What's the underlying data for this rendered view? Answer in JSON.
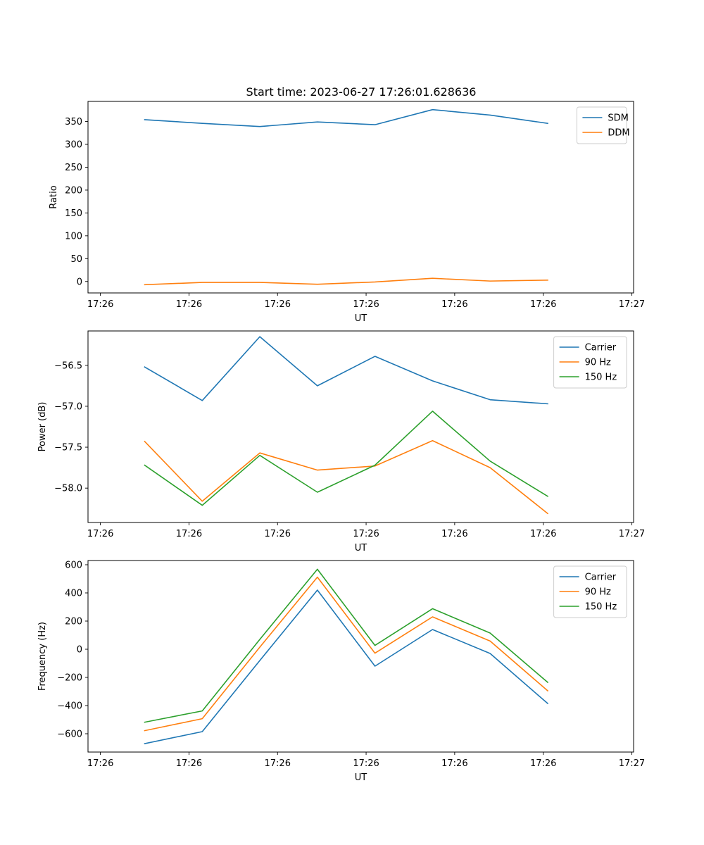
{
  "figure_title": "Start time: 2023-06-27 17:26:01.628636",
  "chart_data": [
    {
      "type": "line",
      "title": "Start time: 2023-06-27 17:26:01.628636",
      "xlabel": "UT",
      "ylabel": "Ratio",
      "x_tick_labels": [
        "17:26",
        "17:26",
        "17:26",
        "17:26",
        "17:26",
        "17:26",
        "17:27"
      ],
      "y_ticks": [
        0,
        50,
        100,
        150,
        200,
        250,
        300,
        350
      ],
      "ylim": [
        -25,
        394
      ],
      "xlim": [
        -0.14,
        6.02
      ],
      "x_ticks": [
        0,
        1,
        2,
        3,
        4,
        5,
        6
      ],
      "x": [
        0.5,
        1.15,
        1.8,
        2.45,
        3.1,
        3.75,
        4.4,
        5.05
      ],
      "series": [
        {
          "name": "SDM",
          "color": "#1f77b4",
          "values": [
            354,
            346,
            339,
            349,
            343,
            376,
            364,
            346
          ]
        },
        {
          "name": "DDM",
          "color": "#ff7f0e",
          "values": [
            -7,
            -2,
            -2,
            -6,
            -1,
            7,
            1,
            3
          ]
        }
      ],
      "legend": "top-right",
      "grid": false
    },
    {
      "type": "line",
      "title": "",
      "xlabel": "UT",
      "ylabel": "Power (dB)",
      "x_tick_labels": [
        "17:26",
        "17:26",
        "17:26",
        "17:26",
        "17:26",
        "17:26",
        "17:27"
      ],
      "y_ticks": [
        -58.0,
        -57.5,
        -57.0,
        -56.5
      ],
      "y_tick_labels": [
        "−58.0",
        "−57.5",
        "−57.0",
        "−56.5"
      ],
      "ylim": [
        -58.42,
        -56.08
      ],
      "xlim": [
        -0.14,
        6.02
      ],
      "x_ticks": [
        0,
        1,
        2,
        3,
        4,
        5,
        6
      ],
      "x": [
        0.5,
        1.15,
        1.8,
        2.45,
        3.1,
        3.75,
        4.4,
        5.05
      ],
      "series": [
        {
          "name": "Carrier",
          "color": "#1f77b4",
          "values": [
            -56.52,
            -56.93,
            -56.15,
            -56.75,
            -56.39,
            -56.69,
            -56.92,
            -56.97
          ]
        },
        {
          "name": "90 Hz",
          "color": "#ff7f0e",
          "values": [
            -57.43,
            -58.16,
            -57.57,
            -57.78,
            -57.73,
            -57.42,
            -57.75,
            -58.31
          ]
        },
        {
          "name": "150 Hz",
          "color": "#2ca02c",
          "values": [
            -57.72,
            -58.21,
            -57.6,
            -58.05,
            -57.72,
            -57.06,
            -57.67,
            -58.1
          ]
        }
      ],
      "legend": "top-right",
      "grid": false
    },
    {
      "type": "line",
      "title": "",
      "xlabel": "UT",
      "ylabel": "Frequency (Hz)",
      "x_tick_labels": [
        "17:26",
        "17:26",
        "17:26",
        "17:26",
        "17:26",
        "17:26",
        "17:27"
      ],
      "y_ticks": [
        -600,
        -400,
        -200,
        0,
        200,
        400,
        600
      ],
      "y_tick_labels": [
        "−600",
        "−400",
        "−200",
        "0",
        "200",
        "400",
        "600"
      ],
      "ylim": [
        -730,
        630
      ],
      "xlim": [
        -0.14,
        6.02
      ],
      "x_ticks": [
        0,
        1,
        2,
        3,
        4,
        5,
        6
      ],
      "x": [
        0.5,
        1.15,
        1.8,
        2.45,
        3.1,
        3.75,
        4.4,
        5.05
      ],
      "series": [
        {
          "name": "Carrier",
          "color": "#1f77b4",
          "values": [
            -670,
            -585,
            -80,
            420,
            -120,
            140,
            -30,
            -385
          ]
        },
        {
          "name": "90 Hz",
          "color": "#ff7f0e",
          "values": [
            -578,
            -493,
            15,
            512,
            -28,
            230,
            58,
            -295
          ]
        },
        {
          "name": "150 Hz",
          "color": "#2ca02c",
          "values": [
            -518,
            -438,
            70,
            568,
            27,
            288,
            115,
            -235
          ]
        }
      ],
      "legend": "top-right",
      "grid": false
    }
  ]
}
